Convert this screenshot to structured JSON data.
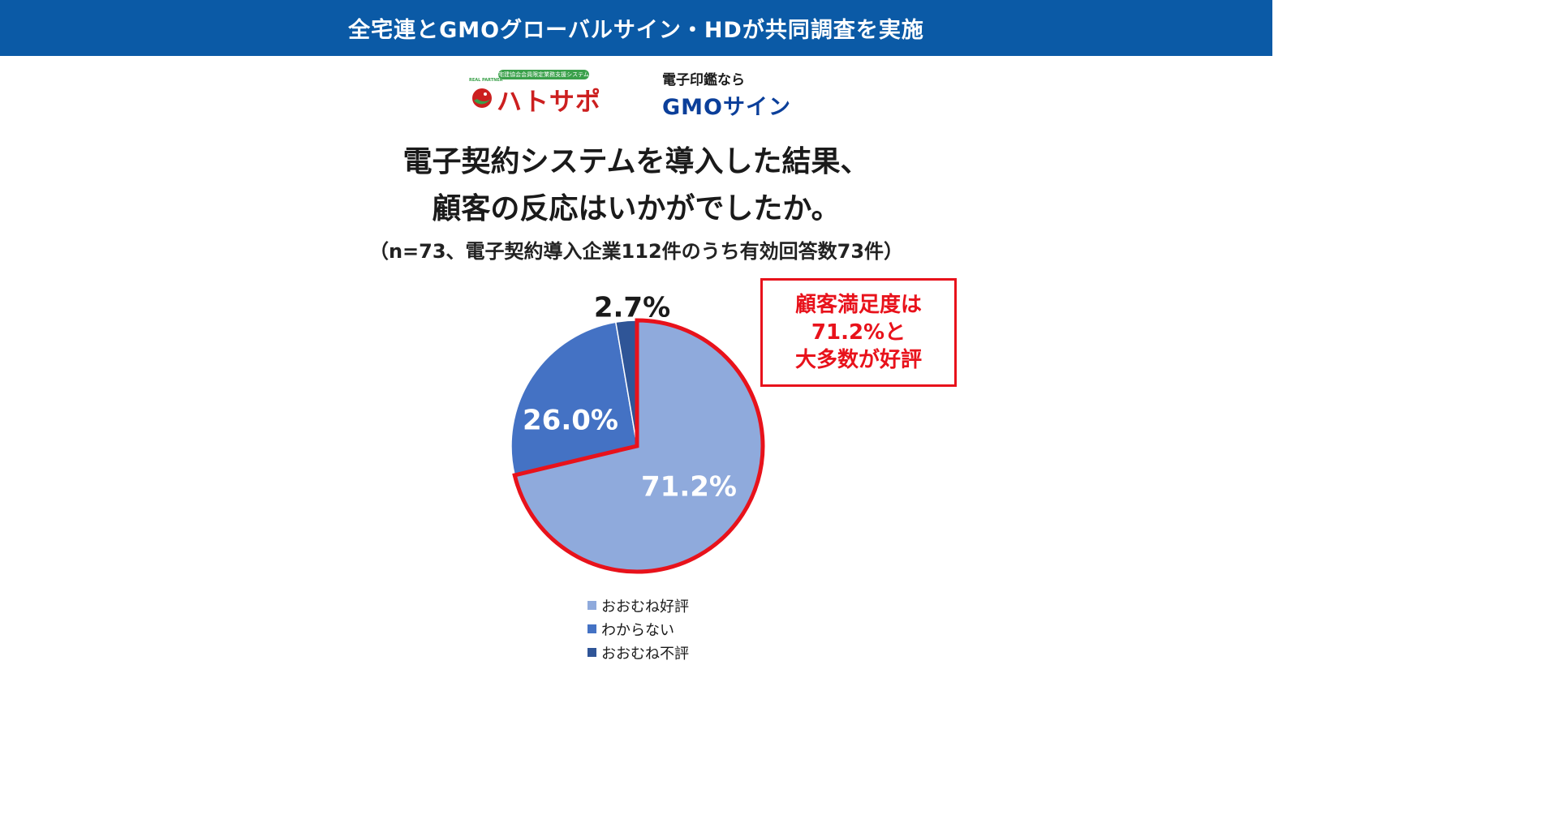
{
  "banner": {
    "text": "全宅連とGMOグローバルサイン・HDが共同調査を実施"
  },
  "logos": {
    "hatosapo": {
      "tag": "宅建協会会員限定業務支援システム",
      "name": "ハトサポ",
      "small": "REAL PARTNER"
    },
    "gmo": {
      "sub": "電子印鑑なら",
      "name": "GMOサイン"
    }
  },
  "question": {
    "line1": "電子契約システムを導入した結果、",
    "line2": "顧客の反応はいかがでしたか。",
    "note": "（n=73、電子契約導入企業112件のうち有効回答数73件）"
  },
  "callout": {
    "lines": [
      "顧客満足度は",
      "71.2%と",
      "大多数が好評"
    ],
    "color": "#e8121b"
  },
  "chart_data": {
    "type": "pie",
    "title": "電子契約システムを導入した結果、顧客の反応はいかがでしたか。",
    "categories": [
      "おおむね好評",
      "わからない",
      "おおむね不評"
    ],
    "values": [
      71.2,
      26.0,
      2.7
    ],
    "labels": [
      "71.2%",
      "26.0%",
      "2.7%"
    ],
    "colors": [
      "#8faadc",
      "#4472c4",
      "#2f5597"
    ],
    "highlight": {
      "slice": "おおむね好評",
      "outline_color": "#e8121b"
    },
    "legend_position": "bottom"
  }
}
